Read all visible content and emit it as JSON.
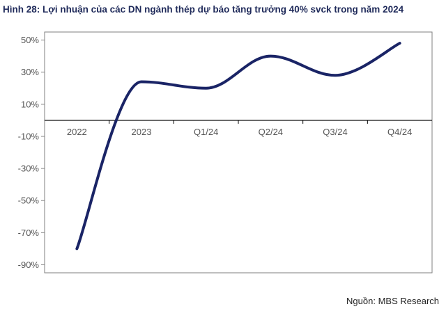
{
  "title": "Hình 28: Lợi nhuận của các DN ngành thép dự báo tăng trưởng 40% svck trong năm 2024",
  "source": "Nguồn: MBS Research",
  "chart_data": {
    "type": "line",
    "categories": [
      "2022",
      "2023",
      "Q1/24",
      "Q2/24",
      "Q3/24",
      "Q4/24"
    ],
    "series": [
      {
        "values": [
          -80,
          24,
          20,
          40,
          28,
          48
        ]
      }
    ],
    "yticks": [
      "50%",
      "30%",
      "10%",
      "-10%",
      "-30%",
      "-50%",
      "-70%",
      "-90%"
    ],
    "ytick_values": [
      50,
      30,
      10,
      -10,
      -30,
      -50,
      -70,
      -90
    ],
    "ylim": [
      -90,
      50
    ],
    "grid": false,
    "line_color": "#1a2466"
  }
}
